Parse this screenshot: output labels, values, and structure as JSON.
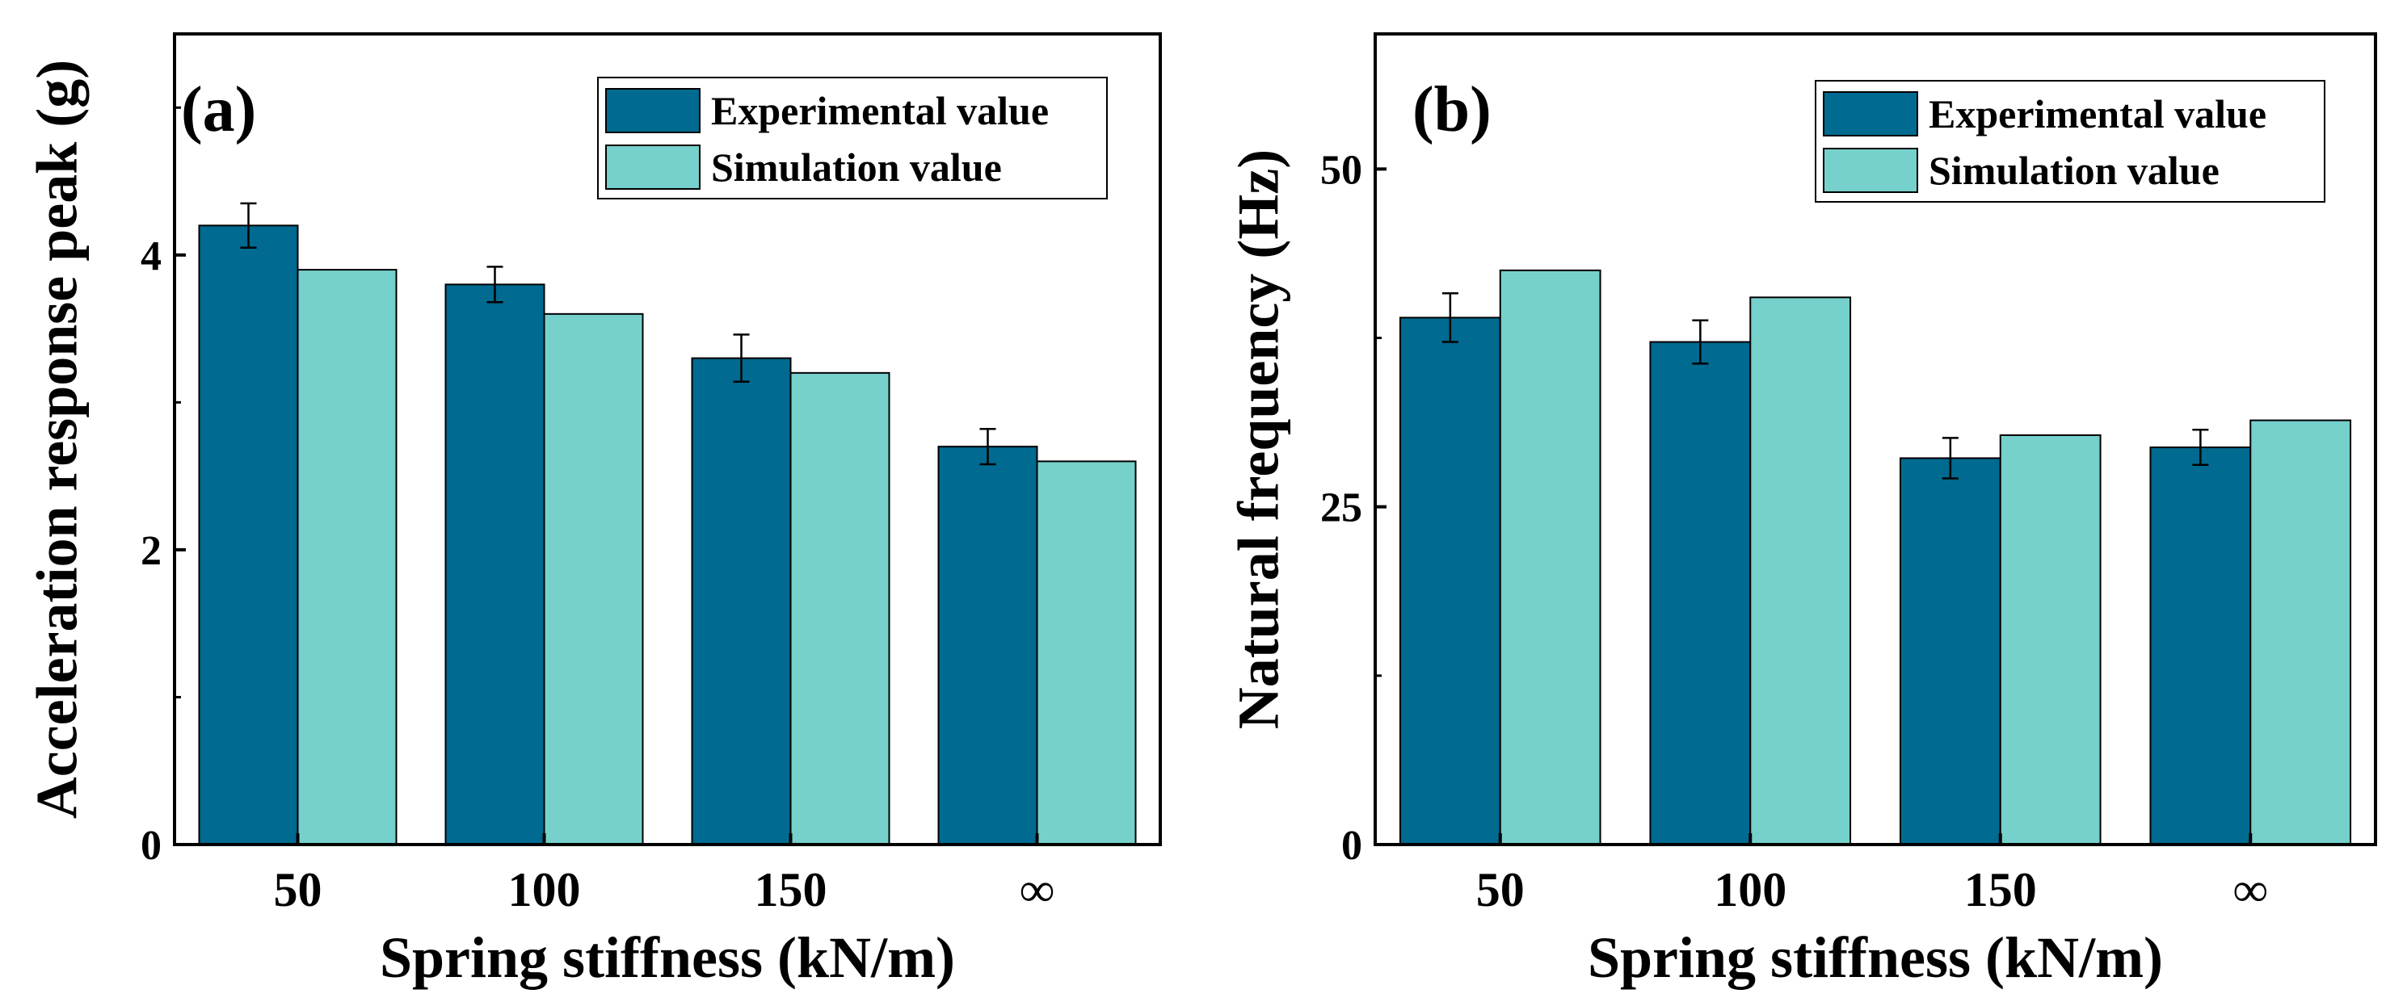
{
  "colors": {
    "experimental": "#006a90",
    "simulation": "#76d0cc",
    "axis": "#000000"
  },
  "chart_data": [
    {
      "type": "bar",
      "panel_label": "(a)",
      "categories": [
        "50",
        "100",
        "150",
        "∞"
      ],
      "xlabel": "Spring stiffness (kN/m)",
      "ylabel": "Acceleration response peak (g)",
      "ylim": [
        0,
        5.5
      ],
      "yticks": [
        0,
        2,
        4
      ],
      "legend_position": "top-right",
      "series": [
        {
          "name": "Experimental value",
          "values": [
            4.2,
            3.8,
            3.3,
            2.7
          ],
          "errors": [
            0.15,
            0.12,
            0.16,
            0.12
          ]
        },
        {
          "name": "Simulation value",
          "values": [
            3.9,
            3.6,
            3.2,
            2.6
          ]
        }
      ]
    },
    {
      "type": "bar",
      "panel_label": "(b)",
      "categories": [
        "50",
        "100",
        "150",
        "∞"
      ],
      "xlabel": "Spring stiffness (kN/m)",
      "ylabel": "Natural frequency (Hz)",
      "ylim": [
        0,
        60
      ],
      "yticks": [
        0,
        25,
        50
      ],
      "legend_position": "top-right",
      "series": [
        {
          "name": "Experimental value",
          "values": [
            39.0,
            37.2,
            28.6,
            29.4
          ],
          "errors": [
            1.8,
            1.6,
            1.5,
            1.3
          ]
        },
        {
          "name": "Simulation value",
          "values": [
            42.5,
            40.5,
            30.3,
            31.4
          ]
        }
      ]
    }
  ]
}
